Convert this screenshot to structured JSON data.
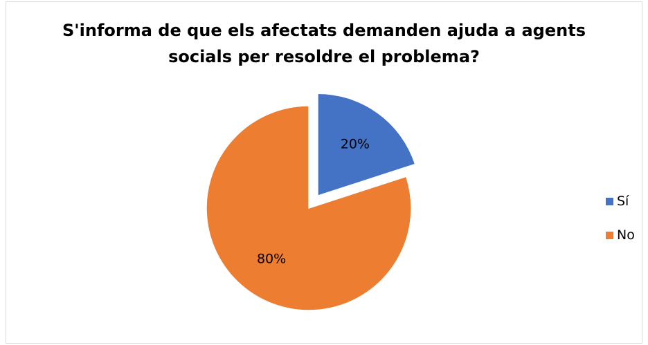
{
  "chart_data": {
    "type": "pie",
    "title": "S'informa de que els afectats demanden ajuda a agents socials per resoldre el problema?",
    "categories": [
      "Sí",
      "No"
    ],
    "values": [
      20,
      80
    ],
    "data_labels": [
      "20%",
      "80%"
    ],
    "colors": [
      "#4472C4",
      "#ED7D31"
    ],
    "exploded": [
      true,
      false
    ],
    "legend_position": "right"
  }
}
